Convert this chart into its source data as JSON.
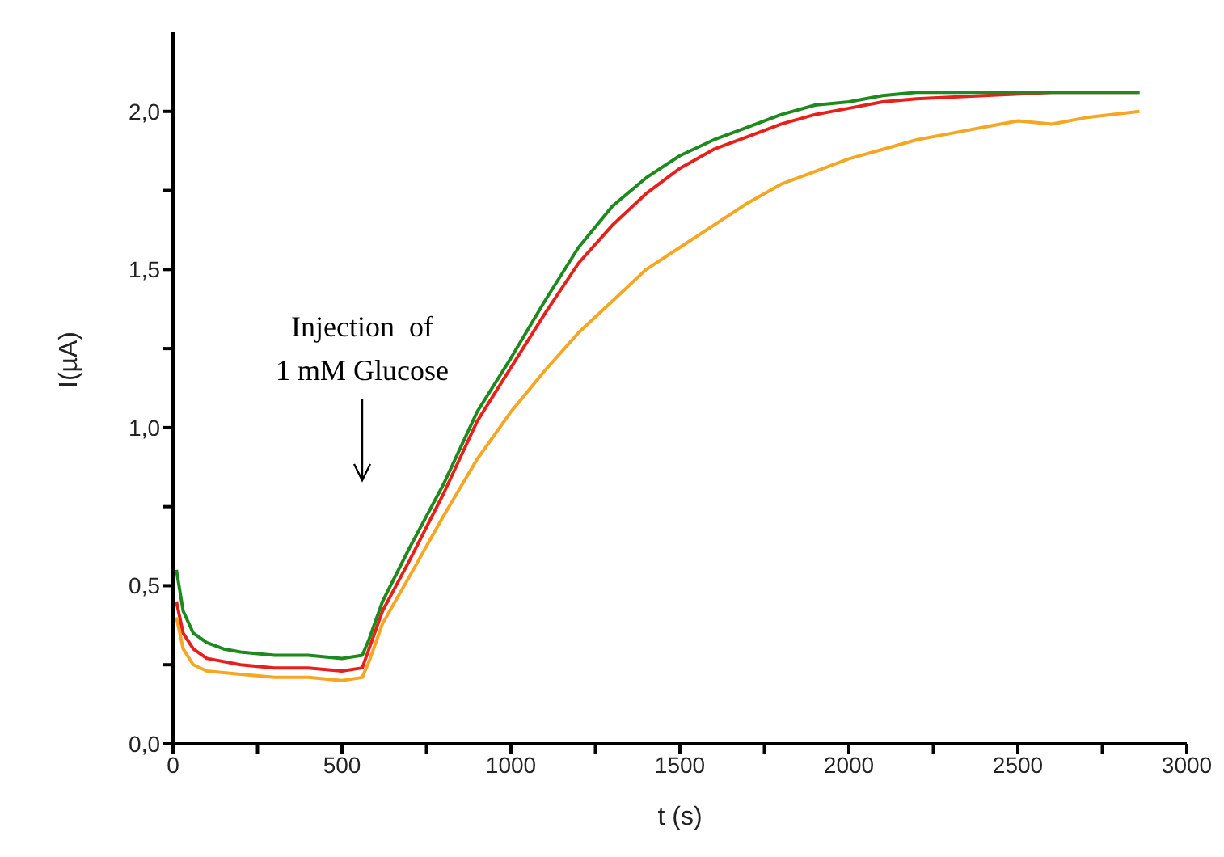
{
  "chart_data": {
    "type": "line",
    "xlabel": "t (s)",
    "ylabel": "I(µA)",
    "xlim": [
      0,
      3000
    ],
    "ylim": [
      0,
      2.25
    ],
    "xticks": [
      0,
      {
        "value": 250,
        "label": null
      },
      500,
      {
        "value": 750,
        "label": null
      },
      1000,
      {
        "value": 1250,
        "label": null
      },
      1500,
      {
        "value": 1750,
        "label": null
      },
      2000,
      {
        "value": 2250,
        "label": null
      },
      2500,
      {
        "value": 2750,
        "label": null
      },
      3000
    ],
    "yticks": [
      {
        "value": 0,
        "label": "0,0"
      },
      {
        "value": 0.25,
        "label": null
      },
      {
        "value": 0.5,
        "label": "0,5"
      },
      {
        "value": 0.75,
        "label": null
      },
      {
        "value": 1,
        "label": "1,0"
      },
      {
        "value": 1.25,
        "label": null
      },
      {
        "value": 1.5,
        "label": "1,5"
      },
      {
        "value": 1.75,
        "label": null
      },
      {
        "value": 2,
        "label": "2,0"
      }
    ],
    "grid": false,
    "legend": false,
    "marker": "none",
    "line_style": "solid",
    "annotations": [
      "Injection  of\n1 mM Glucose"
    ],
    "series": [
      {
        "color": "#f5a623",
        "x": [
          10,
          30,
          60,
          100,
          200,
          300,
          400,
          500,
          560,
          580,
          620,
          700,
          800,
          900,
          1000,
          1100,
          1200,
          1300,
          1400,
          1500,
          1600,
          1700,
          1800,
          1900,
          2000,
          2100,
          2200,
          2300,
          2400,
          2500,
          2600,
          2700,
          2860
        ],
        "values": [
          0.4,
          0.3,
          0.25,
          0.23,
          0.22,
          0.21,
          0.21,
          0.2,
          0.21,
          0.26,
          0.38,
          0.53,
          0.72,
          0.9,
          1.05,
          1.18,
          1.3,
          1.4,
          1.5,
          1.57,
          1.64,
          1.71,
          1.77,
          1.81,
          1.85,
          1.88,
          1.91,
          1.93,
          1.95,
          1.97,
          1.96,
          1.98,
          2.0
        ]
      },
      {
        "color": "#e8201c",
        "x": [
          10,
          30,
          60,
          100,
          200,
          300,
          400,
          500,
          560,
          580,
          620,
          700,
          800,
          900,
          1000,
          1100,
          1200,
          1300,
          1400,
          1500,
          1600,
          1700,
          1800,
          1900,
          2000,
          2100,
          2200,
          2400,
          2600,
          2860
        ],
        "values": [
          0.45,
          0.35,
          0.3,
          0.27,
          0.25,
          0.24,
          0.24,
          0.23,
          0.24,
          0.3,
          0.42,
          0.58,
          0.79,
          1.02,
          1.19,
          1.36,
          1.52,
          1.64,
          1.74,
          1.82,
          1.88,
          1.92,
          1.96,
          1.99,
          2.01,
          2.03,
          2.04,
          2.05,
          2.06,
          2.06
        ]
      },
      {
        "color": "#1e8a1e",
        "x": [
          10,
          30,
          60,
          100,
          150,
          200,
          300,
          400,
          500,
          560,
          580,
          620,
          700,
          800,
          900,
          1000,
          1100,
          1200,
          1300,
          1400,
          1500,
          1600,
          1700,
          1800,
          1900,
          2000,
          2100,
          2200,
          2400,
          2600,
          2860
        ],
        "values": [
          0.55,
          0.42,
          0.35,
          0.32,
          0.3,
          0.29,
          0.28,
          0.28,
          0.27,
          0.28,
          0.33,
          0.45,
          0.62,
          0.82,
          1.05,
          1.22,
          1.4,
          1.57,
          1.7,
          1.79,
          1.86,
          1.91,
          1.95,
          1.99,
          2.02,
          2.03,
          2.05,
          2.06,
          2.06,
          2.06,
          2.06
        ]
      }
    ]
  }
}
